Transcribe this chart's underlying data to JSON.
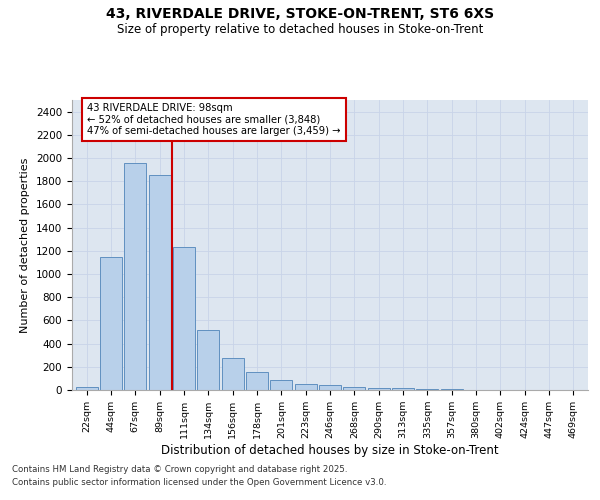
{
  "title1": "43, RIVERDALE DRIVE, STOKE-ON-TRENT, ST6 6XS",
  "title2": "Size of property relative to detached houses in Stoke-on-Trent",
  "xlabel": "Distribution of detached houses by size in Stoke-on-Trent",
  "ylabel": "Number of detached properties",
  "categories": [
    "22sqm",
    "44sqm",
    "67sqm",
    "89sqm",
    "111sqm",
    "134sqm",
    "156sqm",
    "178sqm",
    "201sqm",
    "223sqm",
    "246sqm",
    "268sqm",
    "290sqm",
    "313sqm",
    "335sqm",
    "357sqm",
    "380sqm",
    "402sqm",
    "424sqm",
    "447sqm",
    "469sqm"
  ],
  "values": [
    25,
    1150,
    1960,
    1850,
    1230,
    515,
    275,
    155,
    90,
    50,
    40,
    25,
    20,
    15,
    5,
    5,
    3,
    2,
    2,
    2,
    2
  ],
  "bar_color": "#b8d0ea",
  "bar_edge_color": "#6090c0",
  "vline_x": 3.5,
  "vline_color": "#cc0000",
  "annotation_text": "43 RIVERDALE DRIVE: 98sqm\n← 52% of detached houses are smaller (3,848)\n47% of semi-detached houses are larger (3,459) →",
  "annotation_box_color": "#cc0000",
  "ylim": [
    0,
    2500
  ],
  "yticks": [
    0,
    200,
    400,
    600,
    800,
    1000,
    1200,
    1400,
    1600,
    1800,
    2000,
    2200,
    2400
  ],
  "grid_color": "#c8d4e8",
  "bg_color": "#dde6f0",
  "footer1": "Contains HM Land Registry data © Crown copyright and database right 2025.",
  "footer2": "Contains public sector information licensed under the Open Government Licence v3.0."
}
